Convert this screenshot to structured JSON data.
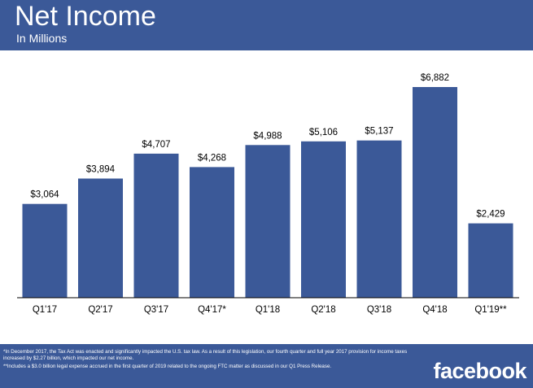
{
  "header": {
    "title": "Net Income",
    "subtitle": "In Millions"
  },
  "footer": {
    "note1": "*In December 2017, the Tax Act was enacted and significantly impacted the U.S. tax law. As a result of this legislation, our fourth quarter and full year 2017 provision for income taxes increased by $2.27 billion, which impacted our net income.",
    "note2": "**Includes a $3.0 billion legal expense accrued in the first quarter of 2019 related to the ongoing FTC matter as discussed in our Q1 Press Release.",
    "logo": "facebook"
  },
  "colors": {
    "brand": "#3b5998",
    "bar": "#3b5998",
    "text": "#000000"
  },
  "chart_data": {
    "type": "bar",
    "title": "Net Income",
    "subtitle": "In Millions",
    "categories": [
      "Q1'17",
      "Q2'17",
      "Q3'17",
      "Q4'17*",
      "Q1'18",
      "Q2'18",
      "Q3'18",
      "Q4'18",
      "Q1'19**"
    ],
    "values": [
      3064,
      3894,
      4707,
      4268,
      4988,
      5106,
      5137,
      6882,
      2429
    ],
    "data_labels": [
      "$3,064",
      "$3,894",
      "$4,707",
      "$4,268",
      "$4,988",
      "$5,106",
      "$5,137",
      "$6,882",
      "$2,429"
    ],
    "xlabel": "",
    "ylabel": "",
    "ylim": [
      0,
      7000
    ],
    "grid": false,
    "legend": "none"
  }
}
